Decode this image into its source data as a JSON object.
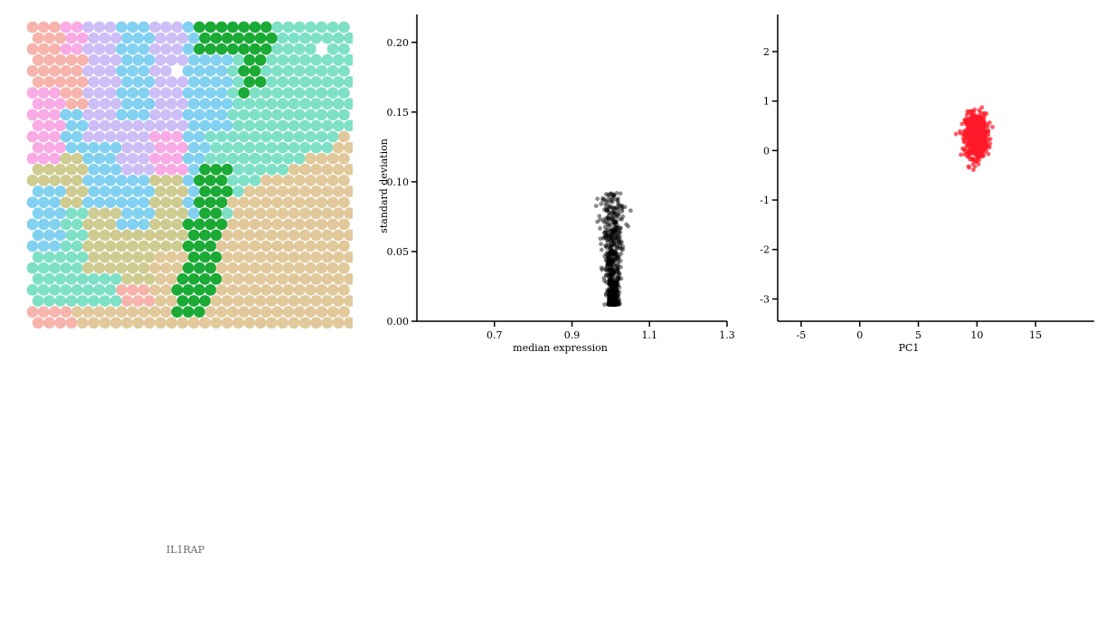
{
  "gene_label": "IL1RAP",
  "hexmap": {
    "cols": 29,
    "rows": 28,
    "highlight_color": "#1aaa35",
    "palette": {
      "salmon": "#f4a79e",
      "pink": "#f79ce0",
      "lavender": "#c4b4f5",
      "sky": "#6cc9ef",
      "teal": "#67dbbd",
      "tan": "#dcc08a",
      "olive": "#c7c27e",
      "white": "#ffffff"
    }
  },
  "chart_data": [
    {
      "type": "scatter",
      "name": "qc",
      "xlabel": "median expression",
      "ylabel": "standard deviation",
      "xlim": [
        0.5,
        1.3
      ],
      "ylim": [
        0.0,
        0.22
      ],
      "xticks": [
        "0.7",
        "0.9",
        "1.1",
        "1.3"
      ],
      "yticks": [
        "0.00",
        "0.05",
        "0.10",
        "0.15",
        "0.20"
      ],
      "point_color": "#000000",
      "point_opacity": 0.45,
      "cluster": {
        "x_center": 1.005,
        "x_spread": 0.012,
        "y_min": 0.012,
        "y_max": 0.092,
        "n": 700
      }
    },
    {
      "type": "scatter",
      "name": "pca",
      "xlabel": "PC1",
      "ylabel": "PC2",
      "xlim": [
        -7,
        20
      ],
      "ylim": [
        -3.45,
        2.75
      ],
      "xticks": [
        "-5",
        "0",
        "5",
        "10",
        "15"
      ],
      "yticks": [
        "-3",
        "-2",
        "-1",
        "0",
        "1",
        "2"
      ],
      "point_color": "#ff1a2a",
      "point_opacity": 0.7,
      "cluster": {
        "x_center": 9.9,
        "x_spread": 0.45,
        "y_center": 0.3,
        "y_spread": 0.22,
        "y_min": -0.48,
        "y_max": 1.2,
        "n": 700
      }
    }
  ]
}
